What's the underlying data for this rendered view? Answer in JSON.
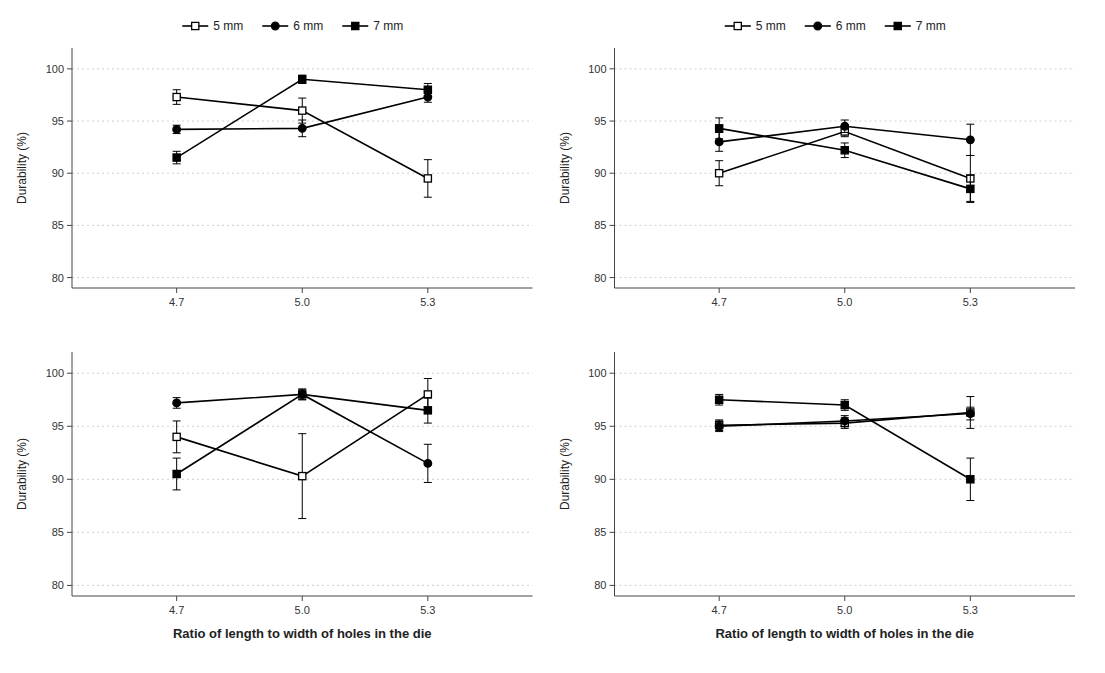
{
  "chart_data": [
    {
      "type": "line",
      "x": [
        4.7,
        5.0,
        5.3
      ],
      "xlim": [
        4.45,
        5.55
      ],
      "xticks": [
        4.7,
        {
          "value": 5.0,
          "label": "5.0"
        },
        5.3
      ],
      "ylim": [
        79,
        102
      ],
      "yticks": [
        80,
        85,
        90,
        95,
        100
      ],
      "ylabel": "Durability  (%)",
      "grid": true,
      "legend": "top",
      "series": [
        {
          "name": "5 mm",
          "color": "#000000",
          "marker": "open-square",
          "values": [
            97.3,
            96.0,
            89.5
          ],
          "errors": [
            0.7,
            1.2,
            1.8
          ]
        },
        {
          "name": "6 mm",
          "color": "#000000",
          "marker": "circle",
          "values": [
            94.2,
            94.3,
            97.3
          ],
          "errors": [
            0.4,
            0.8,
            0.5
          ]
        },
        {
          "name": "7 mm",
          "color": "#000000",
          "marker": "square",
          "values": [
            91.5,
            99.0,
            98.0
          ],
          "errors": [
            0.6,
            0.4,
            0.6
          ]
        }
      ]
    },
    {
      "type": "line",
      "x": [
        4.7,
        5.0,
        5.3
      ],
      "xlim": [
        4.45,
        5.55
      ],
      "xticks": [
        4.7,
        {
          "value": 5.0,
          "label": "5.0"
        },
        5.3
      ],
      "ylim": [
        79,
        102
      ],
      "yticks": [
        80,
        85,
        90,
        95,
        100
      ],
      "ylabel": "Durability  (%)",
      "grid": true,
      "legend": "top",
      "series": [
        {
          "name": "5 mm",
          "color": "#000000",
          "marker": "open-square",
          "values": [
            90.0,
            94.0,
            89.5
          ],
          "errors": [
            1.2,
            0.5,
            2.2
          ]
        },
        {
          "name": "6 mm",
          "color": "#000000",
          "marker": "circle",
          "values": [
            93.0,
            94.5,
            93.2
          ],
          "errors": [
            0.9,
            0.6,
            1.5
          ]
        },
        {
          "name": "7 mm",
          "color": "#000000",
          "marker": "square",
          "values": [
            94.3,
            92.2,
            88.5
          ],
          "errors": [
            1.0,
            0.7,
            1.3
          ]
        }
      ]
    },
    {
      "type": "line",
      "x": [
        4.7,
        5.0,
        5.3
      ],
      "xlim": [
        4.45,
        5.55
      ],
      "xticks": [
        4.7,
        {
          "value": 5.0,
          "label": "5.0"
        },
        5.3
      ],
      "ylim": [
        79,
        102
      ],
      "yticks": [
        80,
        85,
        90,
        95,
        100
      ],
      "ylabel": "Durability  (%)",
      "xlabel": "Ratio of length to width  of holes in the die",
      "grid": true,
      "series": [
        {
          "color": "#000000",
          "marker": "open-square",
          "values": [
            94.0,
            90.3,
            98.0
          ],
          "errors": [
            1.5,
            4.0,
            1.5
          ]
        },
        {
          "color": "#000000",
          "marker": "circle",
          "values": [
            97.2,
            98.0,
            91.5
          ],
          "errors": [
            0.5,
            0.5,
            1.8
          ]
        },
        {
          "color": "#000000",
          "marker": "square",
          "values": [
            90.5,
            98.0,
            96.5
          ],
          "errors": [
            1.5,
            0.5,
            1.2
          ]
        }
      ]
    },
    {
      "type": "line",
      "x": [
        4.7,
        5.0,
        5.3
      ],
      "xlim": [
        4.45,
        5.55
      ],
      "xticks": [
        4.7,
        {
          "value": 5.0,
          "label": "5.0"
        },
        5.3
      ],
      "ylim": [
        79,
        102
      ],
      "yticks": [
        80,
        85,
        90,
        95,
        100
      ],
      "ylabel": "Durability  (%)",
      "xlabel": "Ratio of length to width  of holes in the die",
      "grid": true,
      "series": [
        {
          "color": "#000000",
          "marker": "open-square",
          "values": [
            95.1,
            95.3,
            96.3
          ],
          "errors": [
            0.5,
            0.5,
            1.5
          ]
        },
        {
          "color": "#000000",
          "marker": "circle",
          "values": [
            95.0,
            95.5,
            96.2
          ],
          "errors": [
            0.5,
            0.5,
            0.6
          ]
        },
        {
          "color": "#000000",
          "marker": "square",
          "values": [
            97.5,
            97.0,
            90.0
          ],
          "errors": [
            0.5,
            0.5,
            2.0
          ]
        }
      ]
    }
  ]
}
